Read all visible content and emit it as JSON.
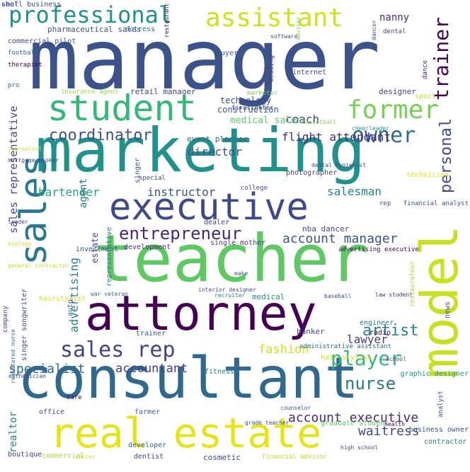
{
  "words": [
    {
      "text": "manager",
      "color": "#3b528b"
    },
    {
      "text": "marketing",
      "color": "#21918c"
    },
    {
      "text": "teacher",
      "color": "#5ec962"
    },
    {
      "text": "consultant",
      "color": "#31688e"
    },
    {
      "text": "attorney",
      "color": "#440154"
    },
    {
      "text": "real estate",
      "color": "#e5e419"
    },
    {
      "text": "student",
      "color": "#35b779"
    },
    {
      "text": "executive",
      "color": "#3e4989"
    },
    {
      "text": "sales",
      "color": "#2a788e"
    },
    {
      "text": "model",
      "color": "#c8e020"
    },
    {
      "text": "professional",
      "color": "#21918c"
    },
    {
      "text": "assistant",
      "color": "#d0e11c"
    },
    {
      "text": "sales rep",
      "color": "#414487"
    },
    {
      "text": "entrepreneur",
      "color": "#482878"
    },
    {
      "text": "former",
      "color": "#75d054"
    },
    {
      "text": "owner",
      "color": "#31688e"
    },
    {
      "text": "coordinator",
      "color": "#3b528b"
    },
    {
      "text": "trainer",
      "color": "#440154"
    },
    {
      "text": "personal",
      "color": "#3e4989"
    },
    {
      "text": "player",
      "color": "#35b779"
    },
    {
      "text": "nurse",
      "color": "#2a788e"
    },
    {
      "text": "artist",
      "color": "#26828e"
    },
    {
      "text": "account manager",
      "color": "#3b528b"
    },
    {
      "text": "account executive",
      "color": "#482878"
    },
    {
      "text": "waitress",
      "color": "#3e4989"
    },
    {
      "text": "specialist",
      "color": "#31688e"
    },
    {
      "text": "accountant",
      "color": "#433e85"
    },
    {
      "text": "lawyer",
      "color": "#433e85"
    },
    {
      "text": "fashion",
      "color": "#d2e21b"
    },
    {
      "text": "bartender",
      "color": "#21a685"
    },
    {
      "text": "instructor",
      "color": "#3b528b"
    },
    {
      "text": "director",
      "color": "#3b528b"
    },
    {
      "text": "coach",
      "color": "#433e85"
    },
    {
      "text": "flight attendant",
      "color": "#482878"
    },
    {
      "text": "salesman",
      "color": "#26828e"
    },
    {
      "text": "agent",
      "color": "#2a788e"
    },
    {
      "text": "estate",
      "color": "#3e4989"
    },
    {
      "text": "advertising",
      "color": "#26828e"
    },
    {
      "text": "sales representative",
      "color": "#3e4989"
    },
    {
      "text": "realtor",
      "color": "#26828e"
    },
    {
      "text": "nanny",
      "color": "#482878"
    },
    {
      "text": "medical sales",
      "color": "#5ec962"
    },
    {
      "text": "technology",
      "color": "#3e4989"
    },
    {
      "text": "construction",
      "color": "#3b528b"
    },
    {
      "text": "event planner",
      "color": "#31688e"
    },
    {
      "text": "retail manager",
      "color": "#433e85"
    },
    {
      "text": "insurance agent",
      "color": "#a0da39"
    },
    {
      "text": "pharmaceutical sales",
      "color": "#3b528b"
    },
    {
      "text": "actress",
      "color": "#31688e"
    },
    {
      "text": "designer",
      "color": "#433e85"
    },
    {
      "text": "dental",
      "color": "#3e4989"
    },
    {
      "text": "commercial pilot",
      "color": "#3e4989"
    },
    {
      "text": "football",
      "color": "#31688e"
    },
    {
      "text": "therapist",
      "color": "#440154"
    },
    {
      "text": "pro",
      "color": "#31688e"
    },
    {
      "text": "buyer",
      "color": "#3b528b"
    },
    {
      "text": "internet",
      "color": "#3e4989"
    },
    {
      "text": "wedding",
      "color": "#433e85"
    },
    {
      "text": "marketer",
      "color": "#7ad151"
    },
    {
      "text": "dance",
      "color": "#482878"
    },
    {
      "text": "sport",
      "color": "#c2df23"
    },
    {
      "text": "basketball",
      "color": "#7ad151"
    },
    {
      "text": "firefighter",
      "color": "#3e4989"
    },
    {
      "text": "cheerleader",
      "color": "#21918c"
    },
    {
      "text": "dental hygienist",
      "color": "#414487"
    },
    {
      "text": "technician",
      "color": "#d8e219"
    },
    {
      "text": "special",
      "color": "#3e4989"
    },
    {
      "text": "singer",
      "color": "#3b528b"
    },
    {
      "text": "college",
      "color": "#3e4989"
    },
    {
      "text": "photographer",
      "color": "#414487"
    },
    {
      "text": "rep",
      "color": "#3e4989"
    },
    {
      "text": "financial analyst",
      "color": "#3b528b"
    },
    {
      "text": "dealer",
      "color": "#433e85"
    },
    {
      "text": "nba dancer",
      "color": "#3e4989"
    },
    {
      "text": "single mother",
      "color": "#433e85"
    },
    {
      "text": "advertising executive",
      "color": "#440154"
    },
    {
      "text": "development",
      "color": "#482878"
    },
    {
      "text": "investment",
      "color": "#3b528b"
    },
    {
      "text": "representative",
      "color": "#2a788e"
    },
    {
      "text": "make",
      "color": "#3b528b"
    },
    {
      "text": "medical",
      "color": "#21918c"
    },
    {
      "text": "baseball",
      "color": "#3e4989"
    },
    {
      "text": "law student",
      "color": "#482878"
    },
    {
      "text": "restaurateur",
      "color": "#a0da39"
    },
    {
      "text": "news",
      "color": "#3b528b"
    },
    {
      "text": "recruiter",
      "color": "#2a788e"
    },
    {
      "text": "interior designer",
      "color": "#3e4989"
    },
    {
      "text": "war veteran",
      "color": "#31688e"
    },
    {
      "text": "hairstylist",
      "color": "#d0e11c"
    },
    {
      "text": "auto",
      "color": "#31688e"
    },
    {
      "text": "trainer",
      "color": "#3b528b"
    },
    {
      "text": "banker",
      "color": "#3e4989"
    },
    {
      "text": "administrative assistant",
      "color": "#31688e"
    },
    {
      "text": "engineer",
      "color": "#2a788e"
    },
    {
      "text": "radio",
      "color": "#440154"
    },
    {
      "text": "hair stylist",
      "color": "#c8e020"
    },
    {
      "text": "school",
      "color": "#3e4989"
    },
    {
      "text": "singer songwriter",
      "color": "#3e4989"
    },
    {
      "text": "company",
      "color": "#414487"
    },
    {
      "text": "fitness",
      "color": "#2a788e"
    },
    {
      "text": "graphic designer",
      "color": "#21918c"
    },
    {
      "text": "analyst",
      "color": "#3b528b"
    },
    {
      "text": "esthetician",
      "color": "#3e4989"
    },
    {
      "text": "registered nurse",
      "color": "#31688e"
    },
    {
      "text": "care",
      "color": "#440154"
    },
    {
      "text": "counselor",
      "color": "#3b528b"
    },
    {
      "text": "office",
      "color": "#3e4989"
    },
    {
      "text": "farmer",
      "color": "#31688e"
    },
    {
      "text": "grade teacher",
      "color": "#3e4989"
    },
    {
      "text": "graduate student",
      "color": "#5ec962"
    },
    {
      "text": "health",
      "color": "#440154"
    },
    {
      "text": "business owner",
      "color": "#3b528b"
    },
    {
      "text": "contractor",
      "color": "#2a788e"
    },
    {
      "text": "developer",
      "color": "#31688e"
    },
    {
      "text": "high school",
      "color": "#3e4989"
    },
    {
      "text": "boutique",
      "color": "#433e85"
    },
    {
      "text": "commercial",
      "color": "#a0da39"
    },
    {
      "text": "soccer",
      "color": "#c2df23"
    },
    {
      "text": "dentist",
      "color": "#3e4989"
    },
    {
      "text": "cosmetic",
      "color": "#3e4989"
    },
    {
      "text": "financial advisor",
      "color": "#c2df23"
    },
    {
      "text": "software",
      "color": "#3e4989"
    },
    {
      "text": "restaurant",
      "color": "#440154"
    },
    {
      "text": "adviser",
      "color": "#7ad151"
    },
    {
      "text": "dancer",
      "color": "#3e4989"
    },
    {
      "text": "journalist",
      "color": "#c2df23"
    },
    {
      "text": "mortgage broker",
      "color": "#3e4989"
    },
    {
      "text": "trader",
      "color": "#3e4989"
    },
    {
      "text": "biology",
      "color": "#c8e020"
    },
    {
      "text": "general contractor",
      "color": "#c2df23"
    },
    {
      "text": "chef",
      "color": "#3e4989"
    },
    {
      "text": "small business",
      "color": "#3e4989"
    }
  ]
}
